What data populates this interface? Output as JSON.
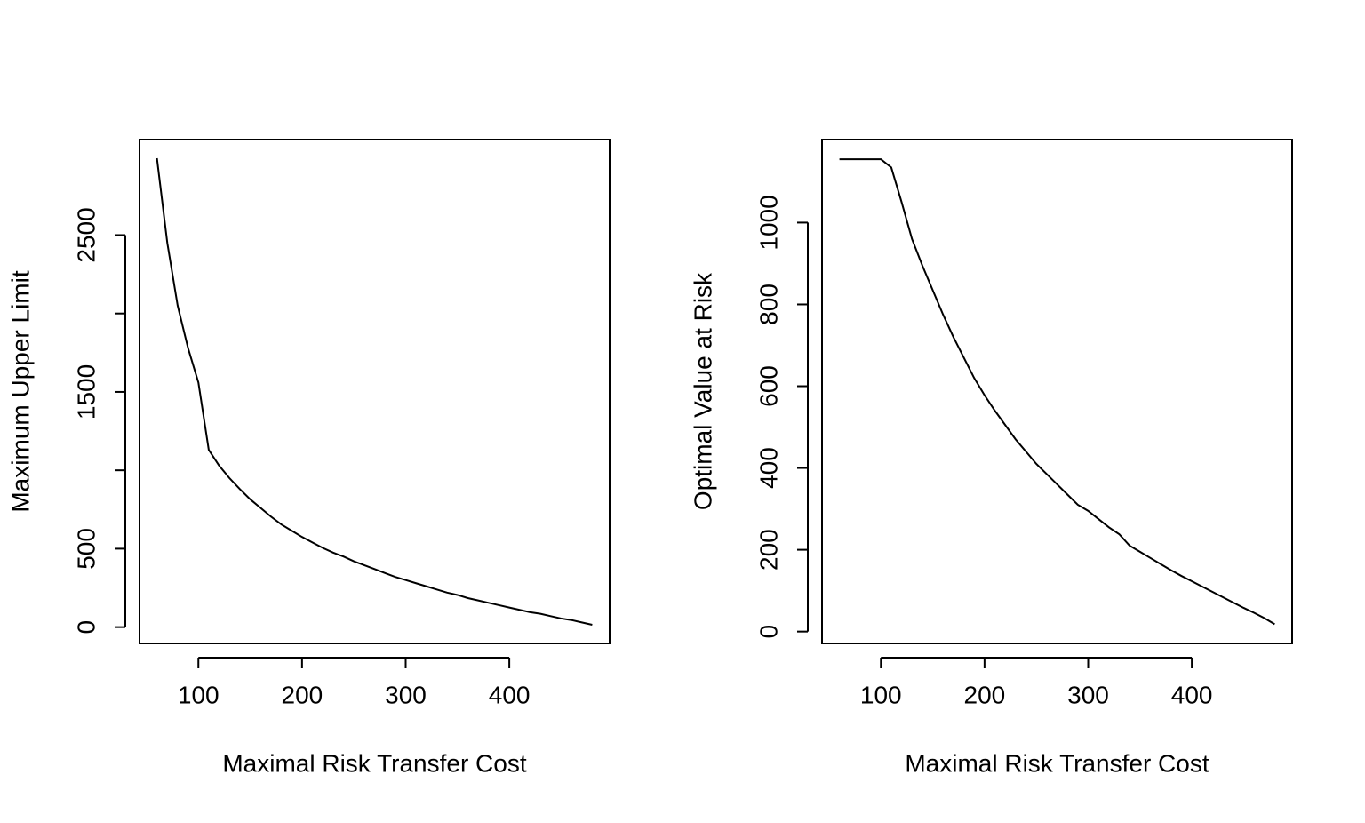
{
  "chart_data": [
    {
      "type": "line",
      "xlabel": "Maximal Risk Transfer Cost",
      "ylabel": "Maximum Upper Limit",
      "color": "#000000",
      "x": [
        60,
        70,
        80,
        90,
        100,
        110,
        120,
        130,
        140,
        150,
        160,
        170,
        180,
        190,
        200,
        210,
        220,
        230,
        240,
        250,
        260,
        270,
        280,
        290,
        300,
        310,
        320,
        330,
        340,
        350,
        360,
        370,
        380,
        390,
        400,
        410,
        420,
        430,
        440,
        450,
        460,
        470,
        480
      ],
      "values": [
        2990,
        2450,
        2050,
        1780,
        1560,
        1130,
        1030,
        950,
        880,
        815,
        760,
        705,
        655,
        615,
        575,
        540,
        505,
        475,
        450,
        420,
        395,
        370,
        345,
        320,
        300,
        280,
        260,
        240,
        220,
        205,
        185,
        170,
        155,
        140,
        125,
        110,
        95,
        85,
        70,
        55,
        45,
        30,
        15
      ],
      "xlim": [
        43.2,
        496.8
      ],
      "ylim": [
        -104,
        3109
      ],
      "xticks": [
        100,
        200,
        300,
        400
      ],
      "yticks": [
        0,
        500,
        {
          "value": 1000,
          "label": null
        },
        1500,
        {
          "value": 2000,
          "label": null
        },
        2500
      ]
    },
    {
      "type": "line",
      "xlabel": "Maximal Risk Transfer Cost",
      "ylabel": "Optimal Value at Risk",
      "color": "#000000",
      "x": [
        60,
        70,
        80,
        90,
        100,
        110,
        120,
        130,
        140,
        150,
        160,
        170,
        180,
        190,
        200,
        210,
        220,
        230,
        240,
        250,
        260,
        270,
        280,
        290,
        300,
        310,
        320,
        330,
        340,
        350,
        360,
        370,
        380,
        390,
        400,
        410,
        420,
        430,
        440,
        450,
        460,
        470,
        480
      ],
      "values": [
        1155,
        1155,
        1155,
        1155,
        1155,
        1135,
        1050,
        960,
        895,
        835,
        775,
        720,
        670,
        620,
        578,
        540,
        505,
        470,
        440,
        410,
        385,
        360,
        335,
        310,
        295,
        275,
        255,
        238,
        210,
        195,
        180,
        165,
        150,
        136,
        123,
        110,
        97,
        84,
        71,
        58,
        46,
        33,
        18
      ],
      "xlim": [
        43.2,
        496.8
      ],
      "ylim": [
        -29,
        1203
      ],
      "xticks": [
        100,
        200,
        300,
        400
      ],
      "yticks": [
        0,
        200,
        400,
        600,
        800,
        1000
      ]
    }
  ]
}
